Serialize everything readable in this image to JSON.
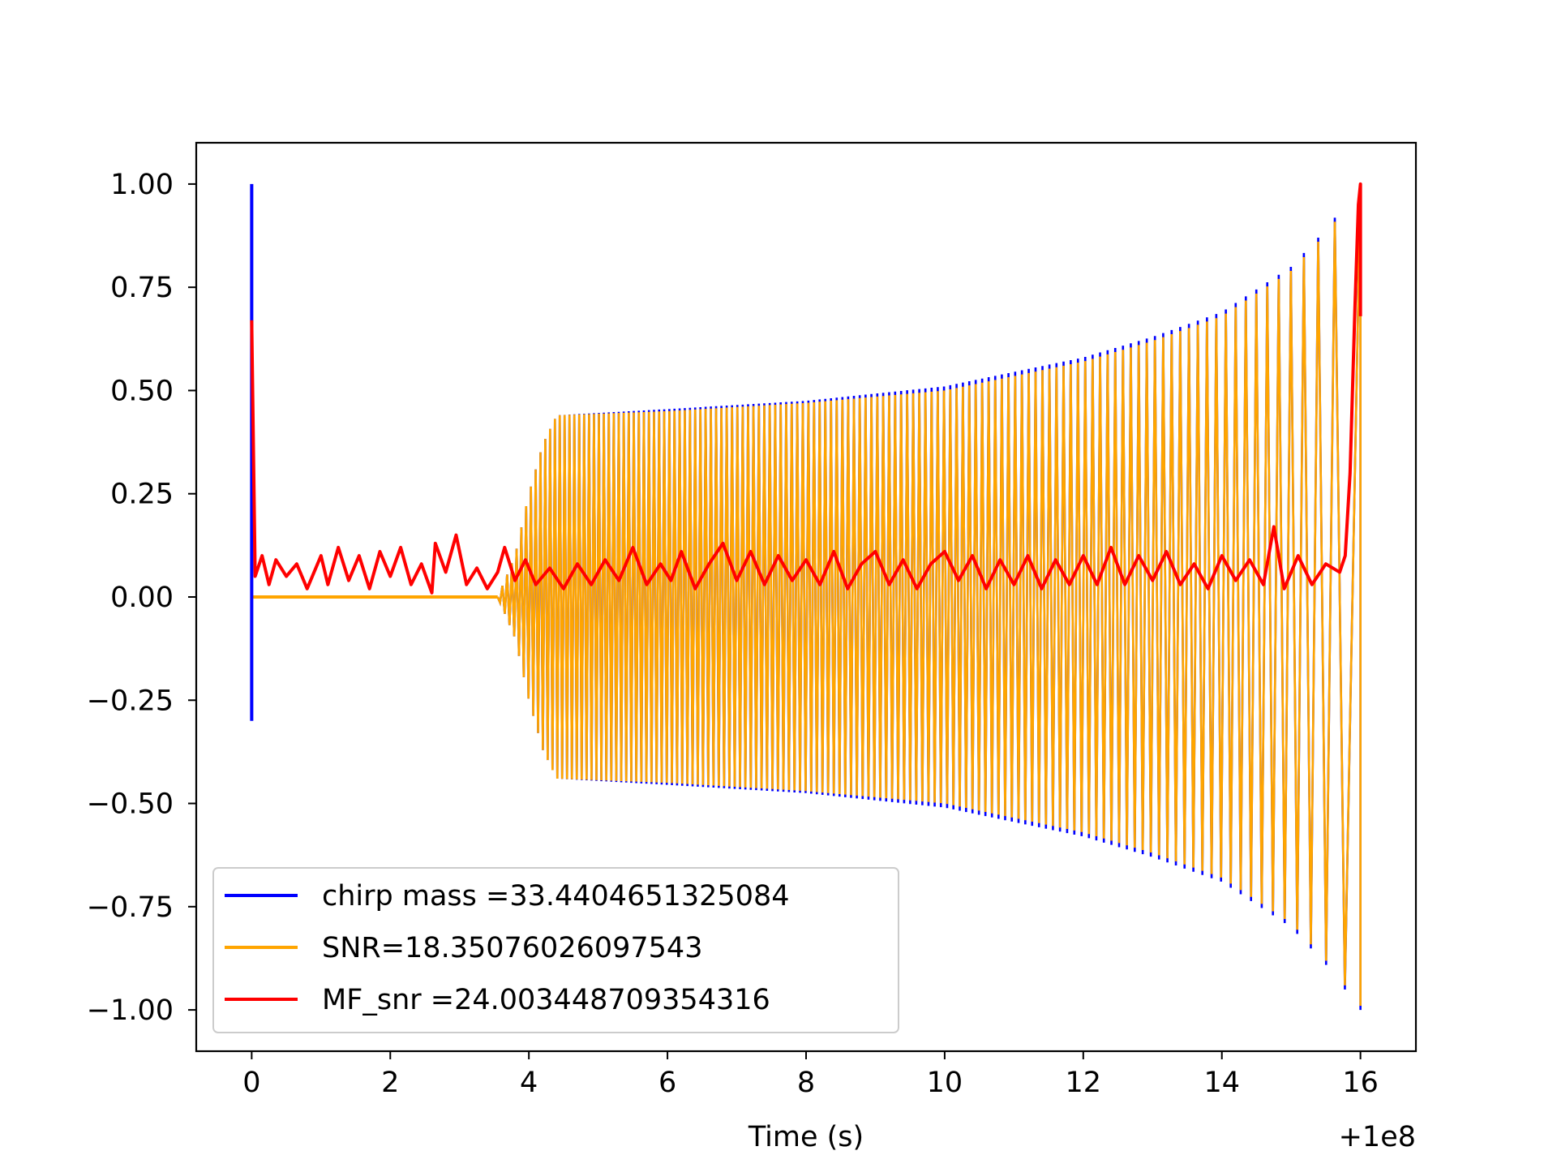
{
  "chart_data": {
    "type": "line",
    "title": "",
    "xlabel": "Time (s)",
    "ylabel": "",
    "x_offset_label": "+1e8",
    "xlim": [
      -0.8,
      16.8
    ],
    "ylim": [
      -1.1,
      1.1
    ],
    "x_ticks": [
      0,
      2,
      4,
      6,
      8,
      10,
      12,
      14,
      16
    ],
    "x_tick_labels": [
      "0",
      "2",
      "4",
      "6",
      "8",
      "10",
      "12",
      "14",
      "16"
    ],
    "y_ticks": [
      1.0,
      0.75,
      0.5,
      0.25,
      0.0,
      -0.25,
      -0.5,
      -0.75,
      -1.0
    ],
    "y_tick_labels": [
      "1.00",
      "0.75",
      "0.50",
      "0.25",
      "0.00",
      "−0.25",
      "−0.50",
      "−0.75",
      "−1.00"
    ],
    "grid": false,
    "legend_position": "lower-left",
    "series": [
      {
        "name": "chirp mass =33.4404651325084",
        "color": "#0000ff",
        "spike": {
          "x": 0.0,
          "y_max": 1.0,
          "y_min": -0.3
        },
        "waveform": {
          "onset": 3.55,
          "end": 16.0,
          "cycles": 132,
          "envelope": [
            [
              3.55,
              0.0
            ],
            [
              3.8,
              0.1
            ],
            [
              4.0,
              0.25
            ],
            [
              4.2,
              0.37
            ],
            [
              4.4,
              0.44
            ],
            [
              6,
              0.455
            ],
            [
              8,
              0.475
            ],
            [
              10,
              0.51
            ],
            [
              12,
              0.58
            ],
            [
              13,
              0.63
            ],
            [
              14,
              0.69
            ],
            [
              15,
              0.8
            ],
            [
              15.5,
              0.89
            ],
            [
              16.0,
              1.0
            ]
          ]
        }
      },
      {
        "name": "SNR=18.35076026097543",
        "color": "#ffa500",
        "baseline": {
          "x_start": 0.0,
          "x_end": 3.55,
          "y": 0.0
        },
        "waveform": {
          "onset": 3.55,
          "end": 16.0,
          "cycles": 132,
          "envelope": [
            [
              3.55,
              0.0
            ],
            [
              3.8,
              0.1
            ],
            [
              4.0,
              0.25
            ],
            [
              4.2,
              0.37
            ],
            [
              4.4,
              0.44
            ],
            [
              6,
              0.45
            ],
            [
              8,
              0.47
            ],
            [
              10,
              0.5
            ],
            [
              12,
              0.57
            ],
            [
              13,
              0.62
            ],
            [
              14,
              0.68
            ],
            [
              15,
              0.79
            ],
            [
              15.5,
              0.88
            ],
            [
              16.0,
              0.99
            ]
          ]
        }
      },
      {
        "name": "MF_snr =24.003448709354316",
        "color": "#ff0000",
        "points": [
          [
            0.0,
            0.67
          ],
          [
            0.05,
            0.05
          ],
          [
            0.15,
            0.1
          ],
          [
            0.25,
            0.03
          ],
          [
            0.35,
            0.09
          ],
          [
            0.5,
            0.05
          ],
          [
            0.65,
            0.08
          ],
          [
            0.8,
            0.02
          ],
          [
            1.0,
            0.1
          ],
          [
            1.1,
            0.03
          ],
          [
            1.25,
            0.12
          ],
          [
            1.4,
            0.04
          ],
          [
            1.55,
            0.1
          ],
          [
            1.7,
            0.02
          ],
          [
            1.85,
            0.11
          ],
          [
            2.0,
            0.05
          ],
          [
            2.15,
            0.12
          ],
          [
            2.3,
            0.03
          ],
          [
            2.45,
            0.08
          ],
          [
            2.6,
            0.01
          ],
          [
            2.65,
            0.13
          ],
          [
            2.8,
            0.06
          ],
          [
            2.95,
            0.15
          ],
          [
            3.1,
            0.03
          ],
          [
            3.25,
            0.07
          ],
          [
            3.4,
            0.02
          ],
          [
            3.55,
            0.06
          ],
          [
            3.65,
            0.12
          ],
          [
            3.8,
            0.04
          ],
          [
            3.95,
            0.09
          ],
          [
            4.1,
            0.03
          ],
          [
            4.3,
            0.07
          ],
          [
            4.5,
            0.02
          ],
          [
            4.7,
            0.08
          ],
          [
            4.9,
            0.03
          ],
          [
            5.1,
            0.09
          ],
          [
            5.3,
            0.04
          ],
          [
            5.5,
            0.12
          ],
          [
            5.7,
            0.03
          ],
          [
            5.9,
            0.08
          ],
          [
            6.05,
            0.04
          ],
          [
            6.2,
            0.11
          ],
          [
            6.4,
            0.02
          ],
          [
            6.6,
            0.08
          ],
          [
            6.8,
            0.13
          ],
          [
            7.0,
            0.04
          ],
          [
            7.2,
            0.11
          ],
          [
            7.4,
            0.03
          ],
          [
            7.6,
            0.1
          ],
          [
            7.8,
            0.04
          ],
          [
            8.0,
            0.09
          ],
          [
            8.2,
            0.03
          ],
          [
            8.4,
            0.11
          ],
          [
            8.6,
            0.02
          ],
          [
            8.8,
            0.08
          ],
          [
            9.0,
            0.11
          ],
          [
            9.2,
            0.03
          ],
          [
            9.4,
            0.09
          ],
          [
            9.6,
            0.02
          ],
          [
            9.8,
            0.08
          ],
          [
            10.0,
            0.11
          ],
          [
            10.2,
            0.04
          ],
          [
            10.4,
            0.1
          ],
          [
            10.6,
            0.02
          ],
          [
            10.8,
            0.09
          ],
          [
            11.0,
            0.03
          ],
          [
            11.2,
            0.1
          ],
          [
            11.4,
            0.02
          ],
          [
            11.6,
            0.09
          ],
          [
            11.8,
            0.03
          ],
          [
            12.0,
            0.1
          ],
          [
            12.2,
            0.03
          ],
          [
            12.4,
            0.12
          ],
          [
            12.6,
            0.03
          ],
          [
            12.8,
            0.1
          ],
          [
            13.0,
            0.04
          ],
          [
            13.2,
            0.11
          ],
          [
            13.4,
            0.03
          ],
          [
            13.6,
            0.08
          ],
          [
            13.8,
            0.02
          ],
          [
            14.0,
            0.1
          ],
          [
            14.2,
            0.04
          ],
          [
            14.4,
            0.09
          ],
          [
            14.6,
            0.03
          ],
          [
            14.75,
            0.17
          ],
          [
            14.9,
            0.02
          ],
          [
            15.1,
            0.1
          ],
          [
            15.3,
            0.03
          ],
          [
            15.5,
            0.08
          ],
          [
            15.7,
            0.06
          ],
          [
            15.78,
            0.1
          ],
          [
            15.85,
            0.3
          ],
          [
            15.92,
            0.7
          ],
          [
            15.97,
            0.95
          ],
          [
            16.0,
            1.0
          ],
          [
            16.0,
            0.68
          ]
        ]
      }
    ]
  }
}
